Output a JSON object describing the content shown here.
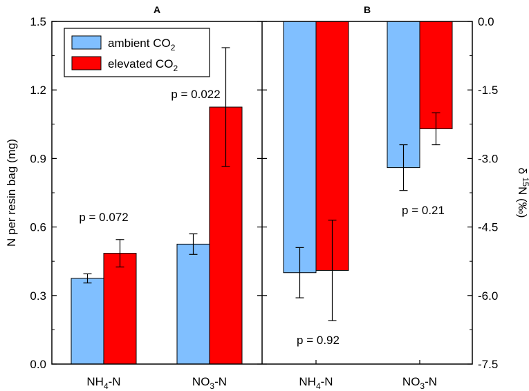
{
  "chart_data": [
    {
      "panel": "A",
      "type": "bar",
      "title": "A",
      "ylabel": "N per resin bag (mg)",
      "ylim": [
        0,
        1.5
      ],
      "yticks": [
        "0.0",
        "0.3",
        "0.6",
        "0.9",
        "1.2",
        "1.5"
      ],
      "categories": [
        {
          "main": "NH",
          "sub": "4",
          "tail": "-N"
        },
        {
          "main": "NO",
          "sub": "3",
          "tail": "-N"
        }
      ],
      "series": [
        {
          "name": "ambient CO2",
          "color": "#80bfff",
          "values": [
            0.375,
            0.525
          ],
          "errors": [
            0.02,
            0.045
          ]
        },
        {
          "name": "elevated CO2",
          "color": "#ff0000",
          "values": [
            0.485,
            1.125
          ],
          "errors": [
            0.06,
            0.26
          ]
        }
      ],
      "annotations": [
        "p = 0.072",
        "p = 0.022"
      ]
    },
    {
      "panel": "B",
      "type": "bar",
      "title": "B",
      "ylabel": "δ 15N (‰)",
      "ylabel_parts": {
        "pre": "δ ",
        "sup": "15",
        "post": "N (‰)"
      },
      "ylim": [
        -7.5,
        0
      ],
      "yticks": [
        "0.0",
        "-1.5",
        "-3.0",
        "-4.5",
        "-6.0",
        "-7.5"
      ],
      "categories": [
        {
          "main": "NH",
          "sub": "4",
          "tail": "-N"
        },
        {
          "main": "NO",
          "sub": "3",
          "tail": "-N"
        }
      ],
      "series": [
        {
          "name": "ambient CO2",
          "color": "#80bfff",
          "values": [
            -5.5,
            -3.2
          ],
          "errors": [
            0.55,
            0.5
          ]
        },
        {
          "name": "elevated CO2",
          "color": "#ff0000",
          "values": [
            -5.45,
            -2.35
          ],
          "errors": [
            1.1,
            0.35
          ]
        }
      ],
      "annotations": [
        "p = 0.92",
        "p = 0.21"
      ]
    }
  ],
  "legend": {
    "items": [
      {
        "main": "ambient CO",
        "sub": "2",
        "color": "#80bfff"
      },
      {
        "main": "elevated CO",
        "sub": "2",
        "color": "#ff0000"
      }
    ]
  }
}
